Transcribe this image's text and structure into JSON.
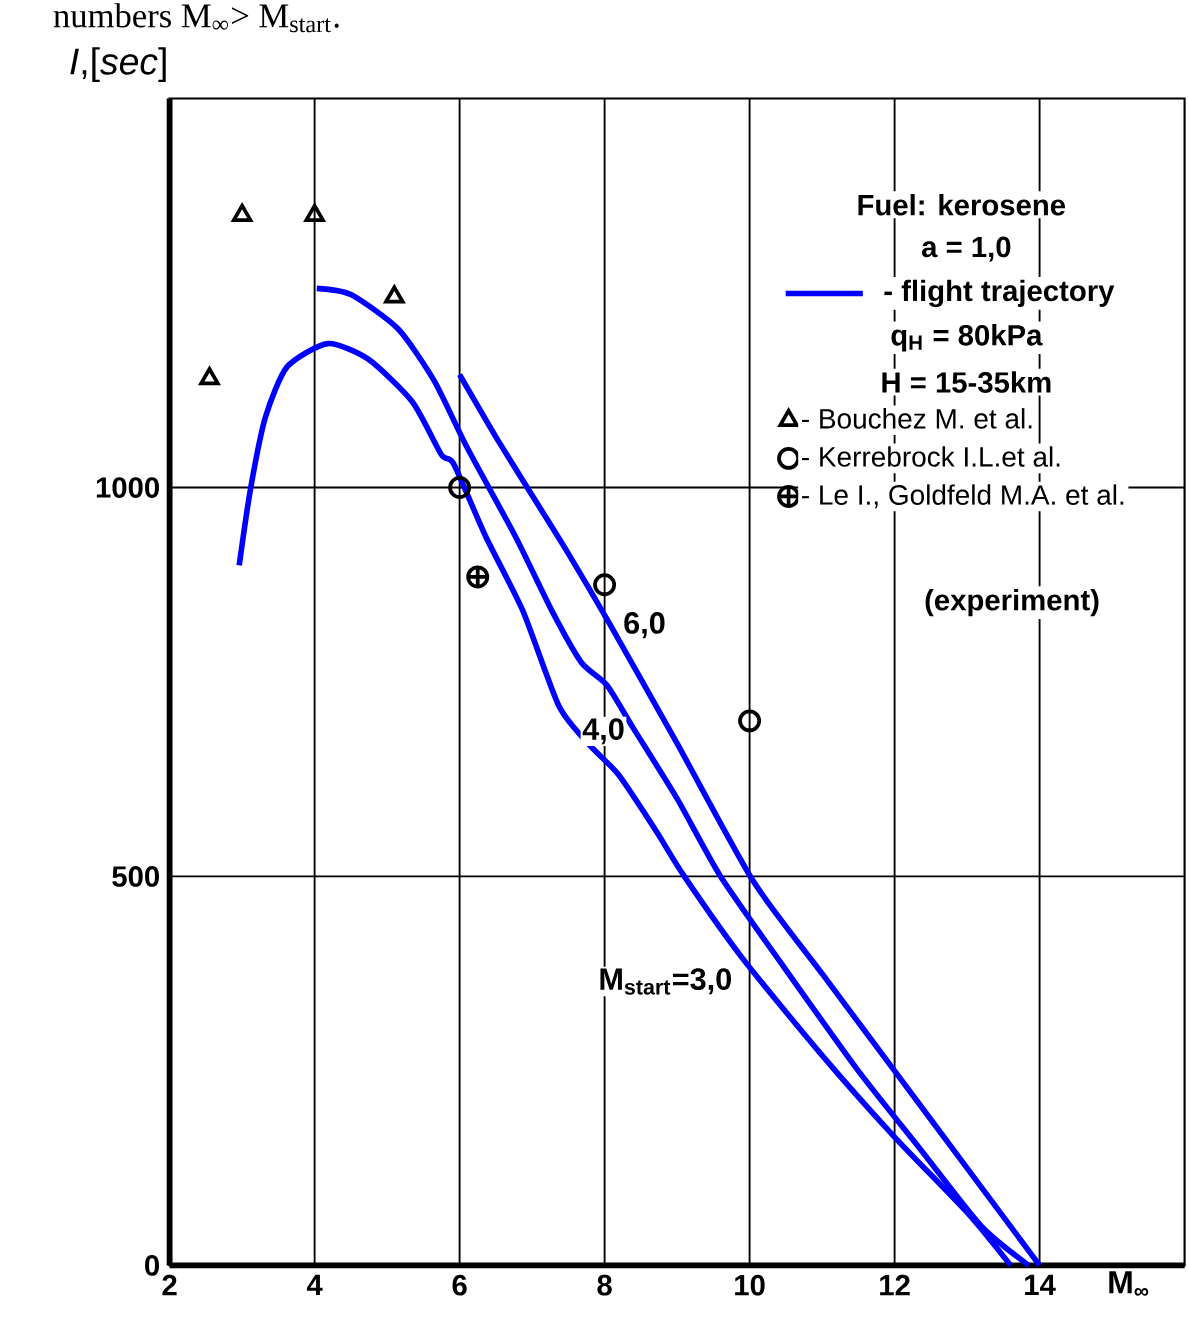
{
  "chart_data": {
    "type": "line",
    "xlabel": "M$_{∞}$",
    "ylabel": "*I*,[*sec*]",
    "annotations": [
      "numbers M$_{∞}$> M$_{start}$.",
      "Fuel: kerosene",
      "a = 1,0",
      "- flight trajectory",
      "q$_{H}$ = 80kPa",
      "H = 15-35km",
      "(experiment)"
    ],
    "xlim": [
      2,
      16
    ],
    "ylim": [
      0,
      1500
    ],
    "xticks": [
      2,
      4,
      6,
      8,
      10,
      12,
      14
    ],
    "yticks": [
      0,
      500,
      1000
    ],
    "grid": true,
    "legend": "top right",
    "line_style": "solid",
    "series": [
      {
        "name": "M$_{start}$=3,0",
        "marker": "none",
        "color": "#0000ff",
        "x": [
          2.96,
          3.11,
          3.32,
          3.62,
          4.18,
          4.74,
          5.35,
          5.75,
          5.92,
          6.36,
          6.87,
          7.37,
          7.78,
          8.19,
          8.7,
          9.1,
          9.9,
          11.0,
          12.0,
          13.0,
          13.6
        ],
        "values": [
          900,
          995,
          1090,
          1155,
          1185,
          1165,
          1110,
          1042,
          1030,
          937,
          842,
          719,
          670,
          631,
          560,
          500,
          395,
          270,
          165,
          68,
          0
        ]
      },
      {
        "name": "4,0",
        "marker": "none",
        "color": "#0000ff",
        "x": [
          4.03,
          4.5,
          5.15,
          5.65,
          6.1,
          6.77,
          7.27,
          7.68,
          8.03,
          8.4,
          9.0,
          9.6,
          10.5,
          11.5,
          12.35,
          13.2,
          13.85
        ],
        "values": [
          1256,
          1248,
          1204,
          1137,
          1052,
          937,
          842,
          775,
          746,
          690,
          600,
          500,
          380,
          250,
          150,
          50,
          0
        ]
      },
      {
        "name": "6,0",
        "marker": "none",
        "color": "#0000ff",
        "x": [
          6.0,
          6.5,
          7.0,
          7.5,
          8.08,
          9.0,
          10.05,
          11.0,
          12.0,
          13.0,
          14.0
        ],
        "values": [
          1145,
          1065,
          990,
          915,
          823,
          671,
          494,
          375,
          250,
          125,
          0
        ]
      },
      {
        "name": "- Bouchez M. et al.",
        "type": "scatter",
        "marker": "triangle",
        "color": "#000000",
        "x": [
          2.55,
          3.0,
          4.0,
          5.1
        ],
        "values": [
          1140,
          1350,
          1350,
          1245
        ]
      },
      {
        "name": "- Kerrebrock I.L.et al.",
        "type": "scatter",
        "marker": "circle",
        "color": "#000000",
        "x": [
          6.0,
          8.0,
          10.0
        ],
        "values": [
          1000,
          875,
          700
        ]
      },
      {
        "name": "- Le I., Goldfeld M.A. et al.",
        "type": "scatter",
        "marker": "cross",
        "color": "#000000",
        "x": [
          6.25
        ],
        "values": [
          885
        ]
      }
    ]
  }
}
